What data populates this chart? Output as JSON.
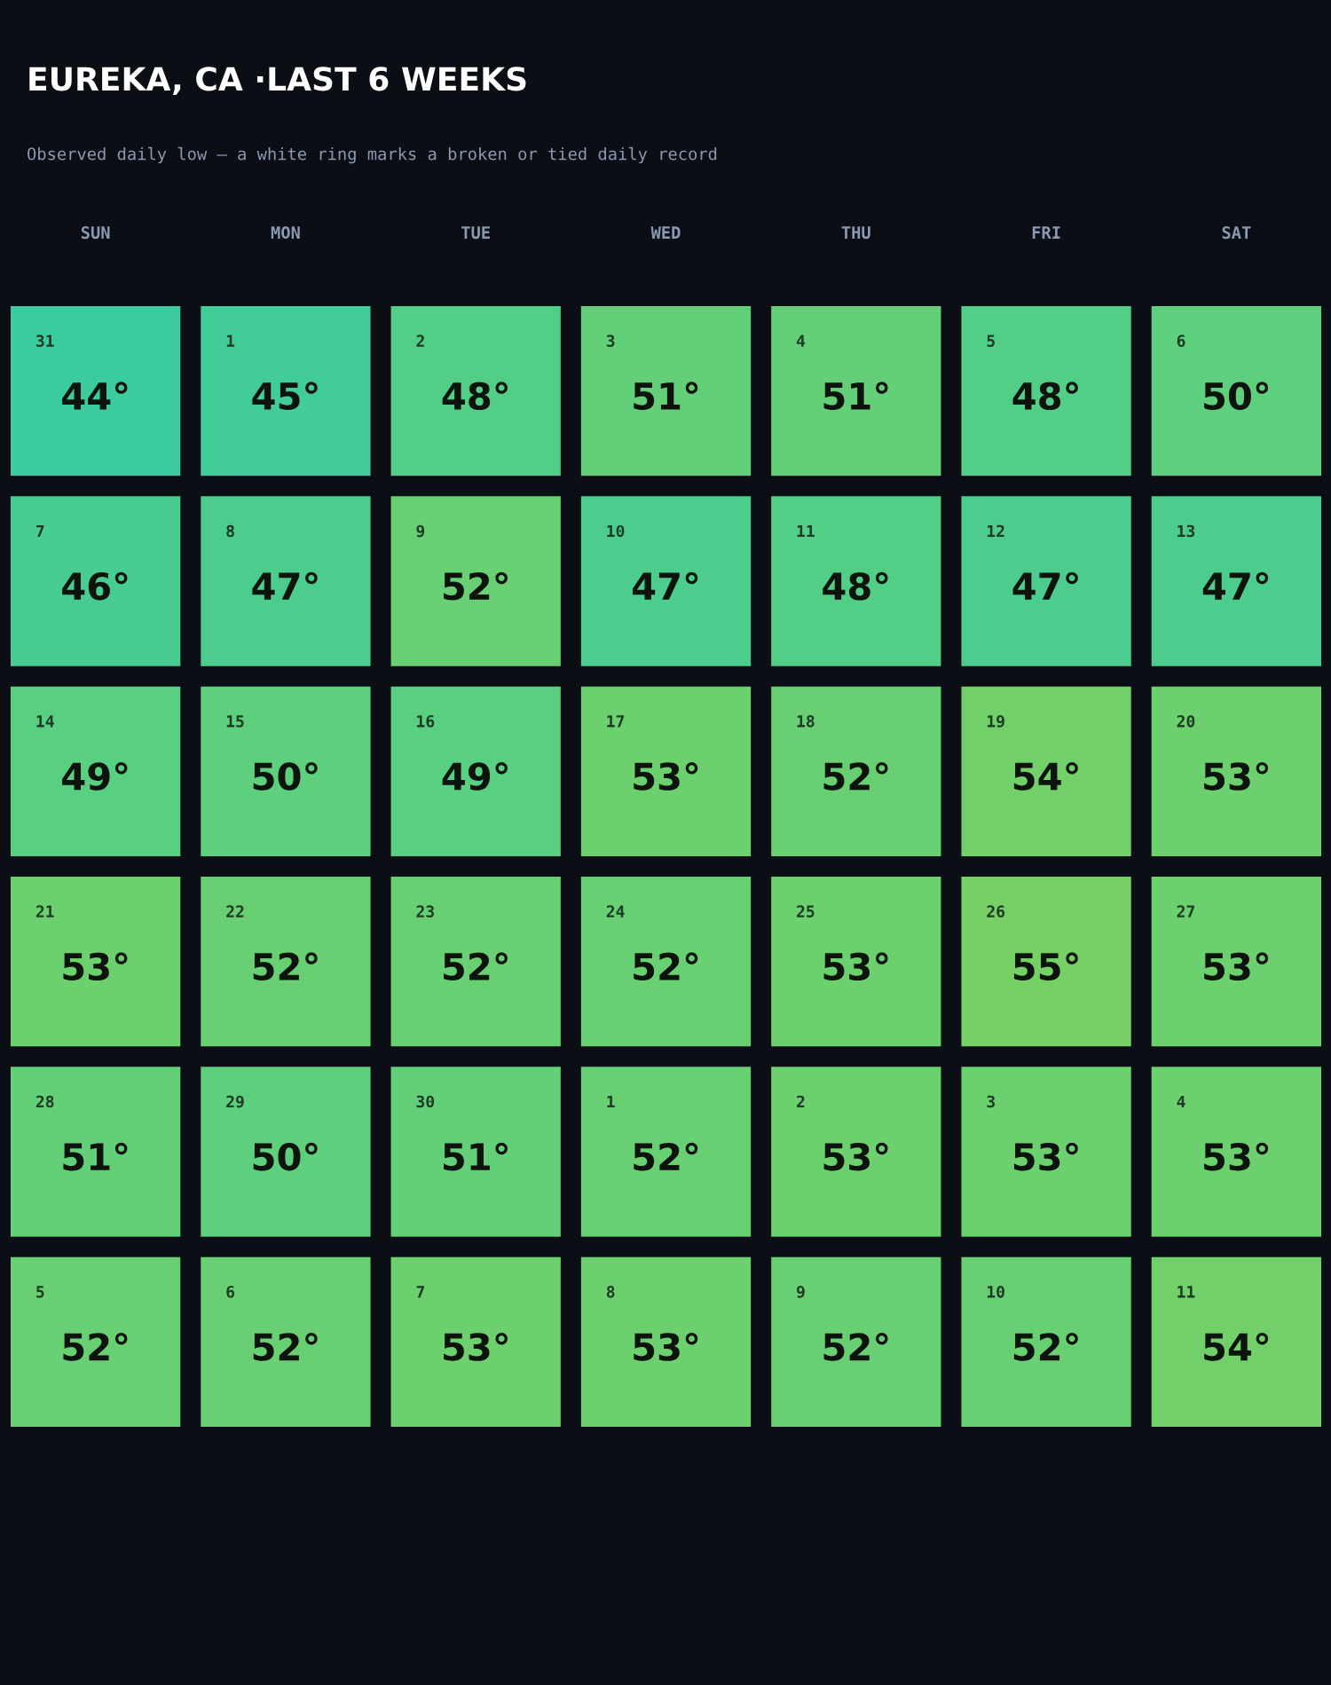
{
  "chart_data": {
    "type": "heatmap",
    "title": "EUREKA, CA ·LAST 6 WEEKS",
    "subtitle": "Observed daily low — a white ring marks a broken or tied daily record",
    "categories": [
      "SUN",
      "MON",
      "TUE",
      "WED",
      "THU",
      "FRI",
      "SAT"
    ],
    "y_categories": [
      null,
      null,
      null,
      null,
      null,
      null
    ],
    "cells": [
      [
        44,
        45,
        48,
        51,
        51,
        48,
        50
      ],
      [
        46,
        47,
        52,
        47,
        48,
        47,
        47
      ],
      [
        49,
        50,
        49,
        53,
        52,
        54,
        53
      ],
      [
        53,
        52,
        52,
        52,
        53,
        55,
        53
      ],
      [
        51,
        50,
        51,
        52,
        53,
        53,
        53
      ],
      [
        52,
        52,
        53,
        53,
        52,
        52,
        54
      ]
    ],
    "cell_labels": [
      [
        "44°",
        "45°",
        "48°",
        "51°",
        "51°",
        "48°",
        "50°"
      ],
      [
        "46°",
        "47°",
        "52°",
        "47°",
        "48°",
        "47°",
        "47°"
      ],
      [
        "49°",
        "50°",
        "49°",
        "53°",
        "52°",
        "54°",
        "53°"
      ],
      [
        "53°",
        "52°",
        "52°",
        "52°",
        "53°",
        "55°",
        "53°"
      ],
      [
        "51°",
        "50°",
        "51°",
        "52°",
        "53°",
        "53°",
        "53°"
      ],
      [
        "52°",
        "52°",
        "53°",
        "53°",
        "52°",
        "52°",
        "54°"
      ]
    ],
    "annotations": [
      "31",
      "1",
      "2",
      "3",
      "4",
      "5",
      "6",
      "7",
      "8",
      "9",
      "10",
      "11",
      "12",
      "13",
      "14",
      "15",
      "16",
      "17",
      "18",
      "19",
      "20",
      "21",
      "22",
      "23",
      "24",
      "25",
      "26",
      "27",
      "28",
      "29",
      "30",
      "1",
      "2",
      "3",
      "4",
      "5",
      "6",
      "7",
      "8",
      "9",
      "10",
      "11"
    ]
  }
}
